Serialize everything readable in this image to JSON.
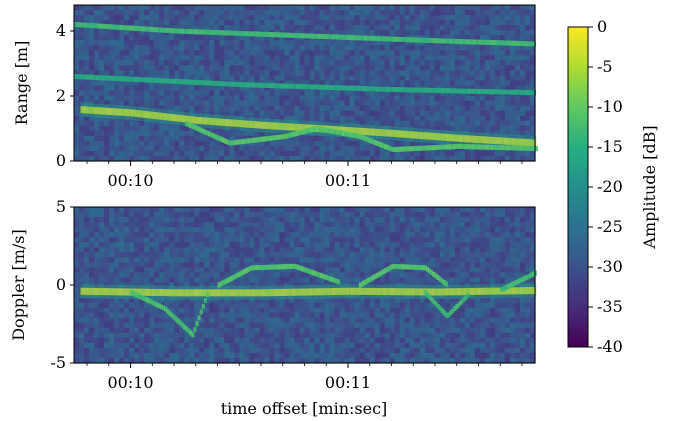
{
  "chart_data": [
    {
      "type": "heatmap",
      "title": "",
      "xlabel": "",
      "ylabel": "Range [m]",
      "ylim": [
        0,
        4.8
      ],
      "yticks": [
        0,
        2,
        4
      ],
      "xticks": [
        "00:10",
        "00:11"
      ],
      "xlim_sec": [
        9.74,
        11.86
      ],
      "traces": [
        {
          "name": "",
          "points": [
            [
              9.77,
              1.58
            ],
            [
              10.0,
              1.48
            ],
            [
              10.3,
              1.25
            ],
            [
              10.6,
              1.1
            ],
            [
              10.9,
              0.98
            ],
            [
              11.2,
              0.85
            ],
            [
              11.5,
              0.7
            ],
            [
              11.86,
              0.55
            ]
          ],
          "strength": 1.0
        },
        {
          "name": "",
          "points": [
            [
              10.25,
              1.15
            ],
            [
              10.45,
              0.55
            ],
            [
              10.7,
              0.75
            ],
            [
              10.85,
              1.0
            ],
            [
              11.05,
              0.75
            ],
            [
              11.2,
              0.35
            ],
            [
              11.5,
              0.45
            ],
            [
              11.86,
              0.38
            ]
          ],
          "strength": 0.45
        },
        {
          "name": "",
          "points": [
            [
              9.74,
              4.2
            ],
            [
              10.2,
              4.0
            ],
            [
              10.8,
              3.85
            ],
            [
              11.4,
              3.7
            ],
            [
              11.86,
              3.6
            ]
          ],
          "strength": 0.35
        },
        {
          "name": "",
          "points": [
            [
              9.74,
              2.6
            ],
            [
              10.5,
              2.35
            ],
            [
              11.2,
              2.2
            ],
            [
              11.86,
              2.1
            ]
          ],
          "strength": 0.18
        }
      ]
    },
    {
      "type": "heatmap",
      "title": "",
      "xlabel": "time offset [min:sec]",
      "ylabel": "Doppler [m/s]",
      "ylim": [
        -5,
        5
      ],
      "yticks": [
        5,
        0,
        -5
      ],
      "xticks": [
        "00:10",
        "00:11"
      ],
      "xlim_sec": [
        9.74,
        11.86
      ],
      "traces": [
        {
          "name": "",
          "points": [
            [
              9.77,
              -0.4
            ],
            [
              10.2,
              -0.5
            ],
            [
              10.6,
              -0.5
            ],
            [
              11.0,
              -0.4
            ],
            [
              11.4,
              -0.45
            ],
            [
              11.86,
              -0.35
            ]
          ],
          "strength": 1.0
        },
        {
          "name": "",
          "points": [
            [
              10.0,
              -0.5
            ],
            [
              10.15,
              -1.5
            ],
            [
              10.28,
              -3.2
            ],
            [
              10.35,
              -0.5
            ]
          ],
          "strength": 0.4
        },
        {
          "name": "",
          "points": [
            [
              10.4,
              0.0
            ],
            [
              10.55,
              1.1
            ],
            [
              10.75,
              1.2
            ],
            [
              10.95,
              0.2
            ]
          ],
          "strength": 0.45
        },
        {
          "name": "",
          "points": [
            [
              11.05,
              0.0
            ],
            [
              11.2,
              1.2
            ],
            [
              11.35,
              1.1
            ],
            [
              11.45,
              0.0
            ]
          ],
          "strength": 0.45
        },
        {
          "name": "",
          "points": [
            [
              11.35,
              -0.5
            ],
            [
              11.45,
              -2.0
            ],
            [
              11.55,
              -0.6
            ]
          ],
          "strength": 0.35
        },
        {
          "name": "",
          "points": [
            [
              11.7,
              -0.3
            ],
            [
              11.86,
              0.8
            ]
          ],
          "strength": 0.35
        }
      ]
    }
  ],
  "colorbar": {
    "label": "Amplitude [dB]",
    "range": [
      -40,
      0
    ],
    "ticks": [
      "0",
      "-5",
      "-10",
      "-15",
      "-20",
      "-25",
      "-30",
      "-35",
      "-40"
    ]
  }
}
